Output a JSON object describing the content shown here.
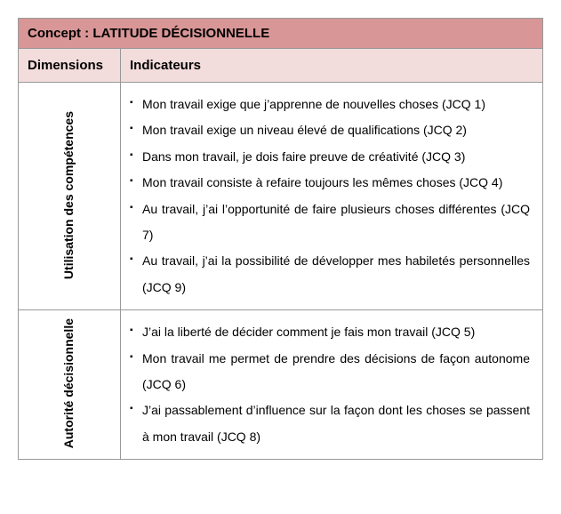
{
  "title": "Concept : LATITUDE DÉCISIONNELLE",
  "headers": {
    "dimensions": "Dimensions",
    "indicateurs": "Indicateurs"
  },
  "rows": [
    {
      "dimension": "Utilisation des compétences",
      "indicators": [
        "Mon travail exige que j’apprenne de nouvelles choses (JCQ 1)",
        "Mon travail exige un niveau élevé de qualifications (JCQ 2)",
        "Dans mon travail, je dois faire preuve de créativité (JCQ 3)",
        "Mon travail consiste à refaire toujours les mêmes choses (JCQ 4)",
        "Au travail, j’ai l’opportunité de faire plusieurs choses différentes (JCQ 7)",
        "Au travail, j’ai la possibilité de développer mes habiletés personnelles (JCQ 9)"
      ]
    },
    {
      "dimension": "Autorité décisionnelle",
      "indicators": [
        "J’ai la liberté de décider comment je fais mon travail (JCQ 5)",
        "Mon travail me permet de prendre des décisions de façon autonome (JCQ 6)",
        "J’ai passablement d’influence sur la façon dont les choses se passent à mon travail (JCQ 8)"
      ]
    }
  ],
  "colors": {
    "title_bg": "#d99696",
    "header_bg": "#f3dcdc",
    "border": "#999999",
    "text": "#000000",
    "cell_bg": "#ffffff"
  }
}
